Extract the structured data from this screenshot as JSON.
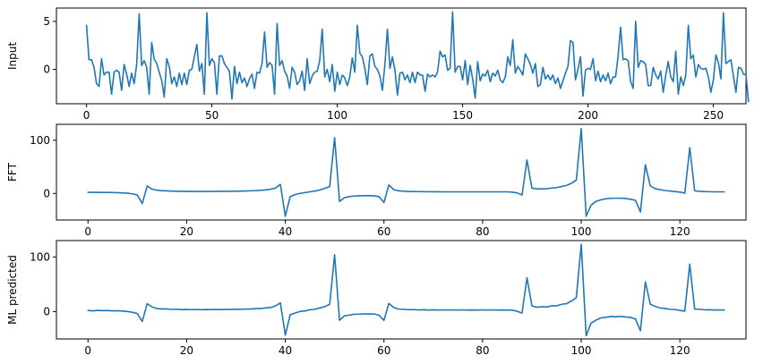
{
  "colors": {
    "series": "#1f77b4",
    "axes": "#000000",
    "background": "#ffffff"
  },
  "chart_data": [
    {
      "type": "line",
      "title": "",
      "xlabel": "",
      "ylabel": "Input",
      "xlim": [
        -12,
        263
      ],
      "ylim": [
        -3.6,
        6.4
      ],
      "xticks": [
        0,
        50,
        100,
        150,
        200,
        250
      ],
      "yticks": [
        -5,
        0,
        5
      ],
      "grid": false,
      "series": [
        {
          "values": [
            4.6,
            1.0,
            1.0,
            0.2,
            -1.5,
            -1.8,
            1.1,
            -0.6,
            -0.3,
            -0.3,
            -2.6,
            -0.3,
            -0.1,
            -0.3,
            -2.2,
            0.5,
            -0.5,
            -1.8,
            -0.4,
            -1.5,
            0.5,
            5.8,
            0.4,
            0.9,
            0.2,
            -2.6,
            2.8,
            1.1,
            0.6,
            -0.3,
            -1.2,
            -2.9,
            1.1,
            0.3,
            -1.5,
            -0.8,
            -1.8,
            -0.4,
            -1.6,
            -0.4,
            -1.6,
            -0.1,
            0.0,
            1.3,
            2.6,
            -0.2,
            0.6,
            -2.6,
            5.9,
            0.4,
            1.1,
            0.7,
            -2.6,
            1.4,
            1.4,
            0.6,
            0.2,
            -0.2,
            -3.1,
            0.3,
            -1.5,
            -0.3,
            -1.4,
            -0.9,
            -1.8,
            -1.0,
            -0.5,
            -2.0,
            -0.3,
            -0.4,
            0.6,
            3.9,
            0.2,
            0.7,
            0.4,
            -2.6,
            4.8,
            0.4,
            0.9,
            -0.2,
            -0.7,
            -2.0,
            0.2,
            -0.3,
            -1.6,
            -1.2,
            -0.2,
            -2.2,
            1.1,
            -1.5,
            -0.7,
            -0.3,
            -0.2,
            0.9,
            4.2,
            -0.8,
            0.0,
            -1.3,
            0.5,
            -2.3,
            -0.3,
            -1.6,
            -0.6,
            -0.9,
            -1.7,
            -0.8,
            1.2,
            -0.3,
            4.6,
            1.7,
            1.3,
            0.1,
            -1.6,
            1.4,
            1.6,
            0.3,
            0.0,
            -0.7,
            -2.2,
            0.5,
            4.2,
            0.1,
            1.3,
            -0.1,
            -2.7,
            -0.4,
            -0.3,
            -1.1,
            -0.6,
            -1.4,
            -0.3,
            -1.4,
            -0.3,
            -0.6,
            -0.6,
            -2.3,
            -0.5,
            -0.8,
            -0.6,
            -0.8,
            -0.3,
            1.9,
            1.3,
            1.5,
            -0.1,
            0.1,
            6.0,
            -0.3,
            0.3,
            0.3,
            -1.1,
            0.9,
            -1.6,
            0.4,
            -1.0,
            -3.0,
            0.8,
            -1.2,
            -0.5,
            -0.7,
            -0.1,
            -1.3,
            -0.4,
            -0.7,
            -0.1,
            -1.1,
            -1.4,
            -0.8,
            1.3,
            0.4,
            3.1,
            -0.4,
            0.3,
            -0.1,
            -0.6,
            1.6,
            1.1,
            0.5,
            -0.4,
            0.6,
            -1.8,
            -1.6,
            0.2,
            -1.0,
            -0.6,
            -1.1,
            -0.6,
            -1.5,
            -0.9,
            -2.0,
            -1.2,
            -0.4,
            0.3,
            3.0,
            2.8,
            -1.1,
            0.0,
            1.3,
            -2.8,
            -0.1,
            0.1,
            0.0,
            1.1,
            -1.2,
            -0.2,
            -1.3,
            -0.6,
            -1.2,
            -0.4,
            -1.5,
            -0.8,
            -0.8,
            1.4,
            4.4,
            1.0,
            1.1,
            0.9,
            -1.3,
            -2.0,
            5.0,
            0.2,
            0.9,
            0.8,
            0.5,
            -1.7,
            -1.7,
            0.2,
            -0.6,
            -1.0,
            -0.2,
            -2.4,
            -0.6,
            0.8,
            -0.8,
            -1.3,
            1.9,
            -2.6,
            -0.8,
            -1.7,
            -0.6,
            4.6,
            1.1,
            1.5,
            -0.8,
            0.5,
            0.1,
            0.0,
            0.1,
            -0.8,
            -2.4,
            -1.1,
            1.5,
            0.7,
            -1.0,
            5.9,
            0.6,
            0.8,
            1.0,
            -0.7,
            -2.4,
            0.2,
            0.1,
            -0.5,
            -0.6,
            -3.4
          ]
        }
      ]
    },
    {
      "type": "line",
      "title": "",
      "xlabel": "",
      "ylabel": "FFT",
      "xlim": [
        -6.4,
        133.4
      ],
      "ylim": [
        -50,
        130
      ],
      "xticks": [
        0,
        20,
        40,
        60,
        80,
        100,
        120
      ],
      "yticks": [
        0,
        100
      ],
      "grid": false,
      "series": [
        {
          "values": [
            2.0,
            2.0,
            2.0,
            1.9,
            1.8,
            1.6,
            1.4,
            1.0,
            0.4,
            -0.8,
            -3.0,
            -19.0,
            14.0,
            8.0,
            6.0,
            5.2,
            4.7,
            4.4,
            4.2,
            4.0,
            3.9,
            3.8,
            3.8,
            3.8,
            3.8,
            3.8,
            3.9,
            3.9,
            4.0,
            4.1,
            4.2,
            4.4,
            4.6,
            4.9,
            5.3,
            5.8,
            6.6,
            7.8,
            10.0,
            17.0,
            -43.0,
            -6.0,
            -2.0,
            0.0,
            1.5,
            3.0,
            4.5,
            6.5,
            9.5,
            13.0,
            105.0,
            -15.0,
            -8.0,
            -6.0,
            -5.0,
            -4.5,
            -4.2,
            -4.0,
            -4.5,
            -6.0,
            -17.0,
            16.0,
            7.0,
            5.0,
            4.2,
            3.8,
            3.6,
            3.4,
            3.3,
            3.2,
            3.1,
            3.1,
            3.0,
            3.0,
            3.0,
            3.0,
            3.0,
            3.0,
            3.0,
            3.0,
            3.0,
            3.0,
            3.0,
            3.0,
            3.0,
            3.0,
            2.5,
            1.0,
            -3.0,
            63.0,
            10.0,
            8.5,
            8.5,
            9.0,
            10.0,
            11.0,
            13.0,
            15.0,
            19.0,
            25.0,
            122.0,
            -43.0,
            -22.0,
            -15.0,
            -12.0,
            -10.0,
            -9.2,
            -9.0,
            -9.0,
            -9.5,
            -11.0,
            -13.0,
            -35.0,
            54.0,
            14.0,
            9.0,
            7.0,
            5.5,
            4.5,
            3.5,
            2.5,
            0.5,
            86.0,
            5.0,
            4.0,
            3.5,
            3.2,
            3.0,
            3.0,
            3.0
          ]
        }
      ]
    },
    {
      "type": "line",
      "title": "",
      "xlabel": "",
      "ylabel": "ML predicted",
      "xlim": [
        -6.4,
        133.4
      ],
      "ylim": [
        -50,
        130
      ],
      "xticks": [
        0,
        20,
        40,
        60,
        80,
        100,
        120
      ],
      "yticks": [
        0,
        100
      ],
      "grid": false,
      "series": [
        {
          "values": [
            2.0,
            1.5,
            2.2,
            1.8,
            2.0,
            1.4,
            1.6,
            1.0,
            0.2,
            -1.2,
            -3.5,
            -18.0,
            14.5,
            8.5,
            5.6,
            5.0,
            4.9,
            4.0,
            4.4,
            3.7,
            4.1,
            3.6,
            4.0,
            3.5,
            3.9,
            3.7,
            4.1,
            3.7,
            4.2,
            3.9,
            4.4,
            4.2,
            4.8,
            4.7,
            5.5,
            5.6,
            6.8,
            7.5,
            10.4,
            16.0,
            -43.0,
            -5.5,
            -2.5,
            0.4,
            1.2,
            3.4,
            4.2,
            6.8,
            9.0,
            13.5,
            104.0,
            -16.0,
            -7.5,
            -6.4,
            -4.6,
            -4.8,
            -4.0,
            -4.3,
            -4.2,
            -6.6,
            -16.0,
            15.0,
            7.5,
            4.6,
            4.4,
            3.5,
            3.8,
            3.1,
            3.5,
            2.9,
            3.3,
            2.9,
            3.2,
            2.8,
            3.2,
            2.8,
            3.2,
            2.9,
            3.1,
            2.8,
            3.2,
            2.9,
            3.2,
            2.8,
            3.1,
            2.8,
            2.8,
            0.6,
            -2.6,
            62.0,
            10.5,
            8.0,
            9.0,
            8.6,
            10.4,
            10.6,
            13.4,
            14.6,
            19.4,
            25.5,
            123.0,
            -44.0,
            -21.0,
            -15.5,
            -11.4,
            -10.4,
            -8.8,
            -9.4,
            -8.6,
            -9.8,
            -10.6,
            -13.5,
            -35.0,
            54.5,
            13.5,
            9.5,
            6.6,
            5.8,
            4.2,
            3.8,
            2.2,
            0.8,
            87.0,
            4.6,
            4.4,
            3.2,
            3.5,
            2.8,
            3.2,
            2.9
          ]
        }
      ]
    }
  ]
}
